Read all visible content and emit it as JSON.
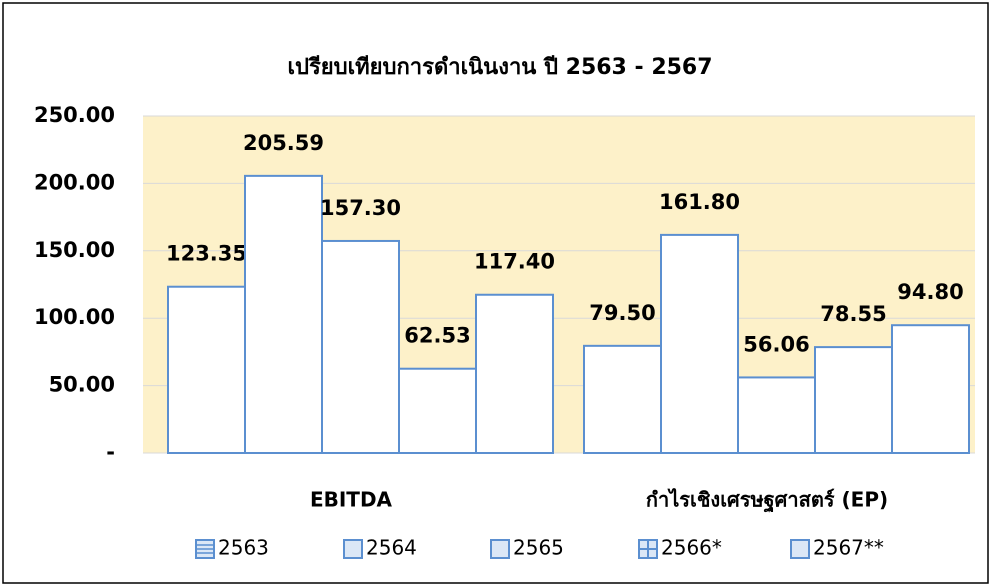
{
  "chart_data": {
    "type": "bar",
    "title": "เปรียบเทียบการดำเนินงาน ปี 2563 - 2567",
    "categories": [
      "EBITDA",
      "กำไรเชิงเศรษฐศาสตร์ (EP)"
    ],
    "series": [
      {
        "name": "2563",
        "color": "#5b8fd0",
        "values": [
          123.35,
          79.5
        ],
        "value_labels": [
          "123.35",
          "79.50"
        ]
      },
      {
        "name": "2564",
        "color": "#5b8fd0",
        "values": [
          205.59,
          161.8
        ],
        "value_labels": [
          "205.59",
          "161.80"
        ]
      },
      {
        "name": "2565",
        "color": "#5b8fd0",
        "values": [
          157.3,
          56.06
        ],
        "value_labels": [
          "157.30",
          "56.06"
        ]
      },
      {
        "name": "2566*",
        "color": "#5b8fd0",
        "values": [
          62.53,
          78.55
        ],
        "value_labels": [
          "62.53",
          "78.55"
        ]
      },
      {
        "name": "2567**",
        "color": "#5b8fd0",
        "values": [
          117.4,
          94.8
        ],
        "value_labels": [
          "117.40",
          "94.80"
        ]
      }
    ],
    "ylim": [
      0,
      250
    ],
    "yticks": [
      {
        "value": 0,
        "label": "-"
      },
      {
        "value": 50,
        "label": "50.00"
      },
      {
        "value": 100,
        "label": "100.00"
      },
      {
        "value": 150,
        "label": "150.00"
      },
      {
        "value": 200,
        "label": "200.00"
      },
      {
        "value": 250,
        "label": "250.00"
      }
    ],
    "grid": true
  }
}
